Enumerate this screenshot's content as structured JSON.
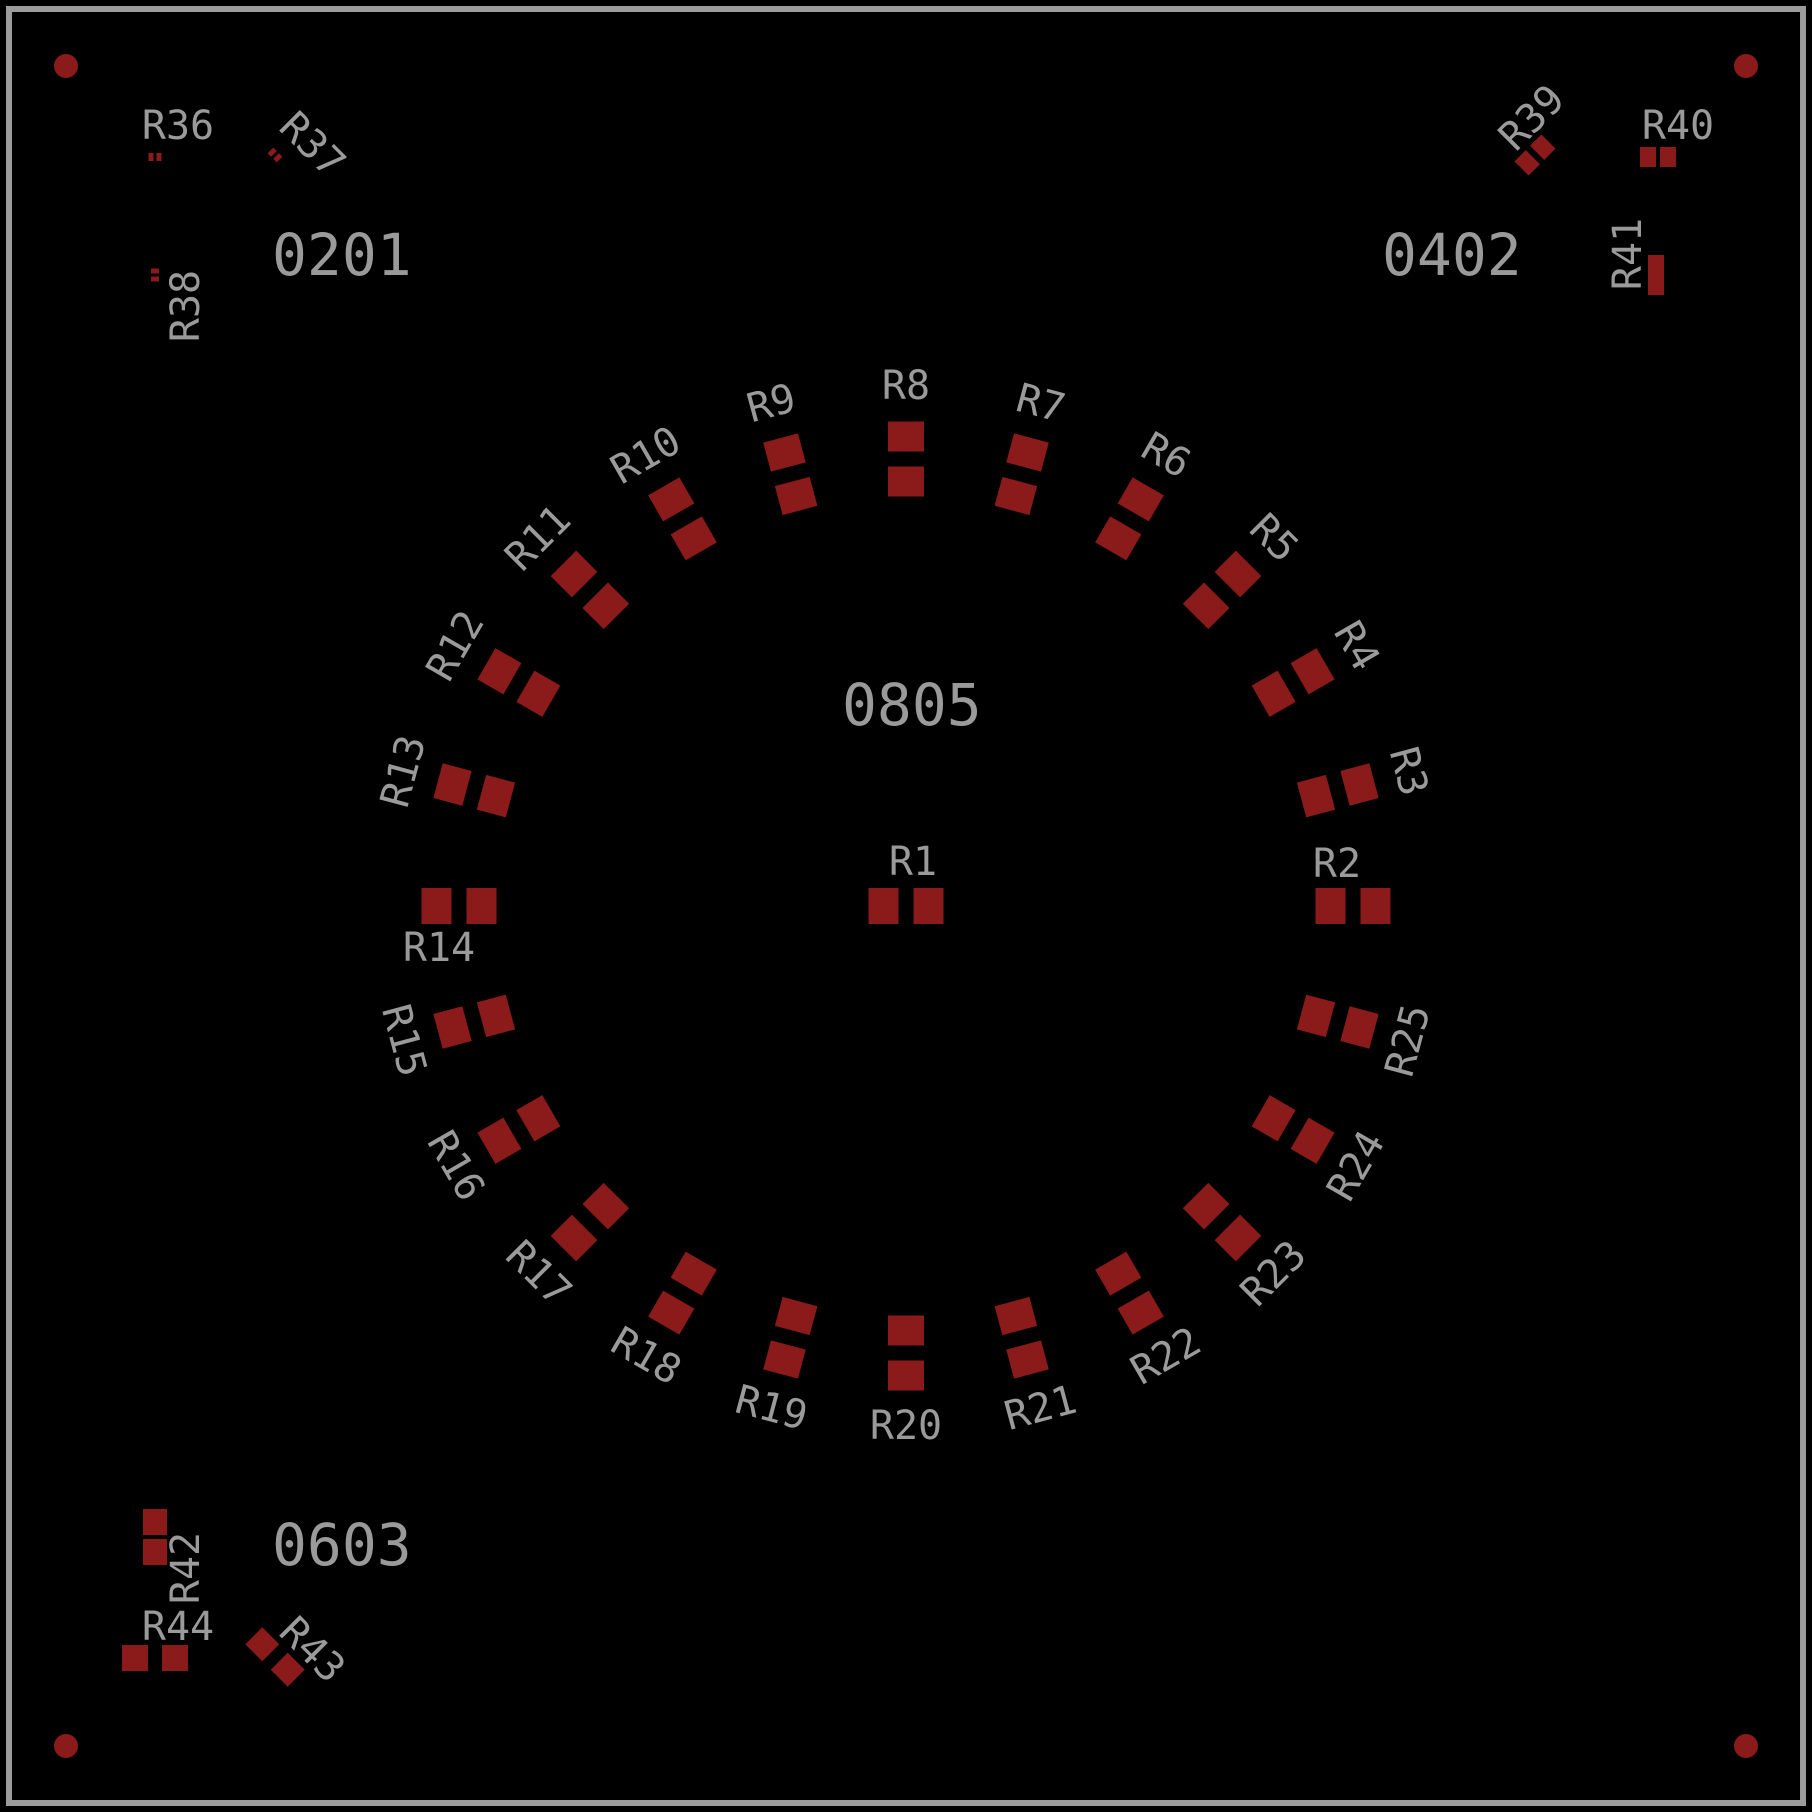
{
  "colors": {
    "background": "#000000",
    "outline": "#9c9c9c",
    "pad": "#8b1a1a",
    "silkscreen": "#9a9a9a"
  },
  "size_groups": [
    {
      "id": "0201",
      "label": "0201"
    },
    {
      "id": "0402",
      "label": "0402"
    },
    {
      "id": "0603",
      "label": "0603"
    },
    {
      "id": "0805",
      "label": "0805"
    }
  ],
  "components": {
    "R1": "R1",
    "R2": "R2",
    "R3": "R3",
    "R4": "R4",
    "R5": "R5",
    "R6": "R6",
    "R7": "R7",
    "R8": "R8",
    "R9": "R9",
    "R10": "R10",
    "R11": "R11",
    "R12": "R12",
    "R13": "R13",
    "R14": "R14",
    "R15": "R15",
    "R16": "R16",
    "R17": "R17",
    "R18": "R18",
    "R19": "R19",
    "R20": "R20",
    "R21": "R21",
    "R22": "R22",
    "R23": "R23",
    "R24": "R24",
    "R25": "R25",
    "R36": "R36",
    "R37": "R37",
    "R38": "R38",
    "R39": "R39",
    "R40": "R40",
    "R41": "R41",
    "R42": "R42",
    "R43": "R43",
    "R44": "R44"
  }
}
